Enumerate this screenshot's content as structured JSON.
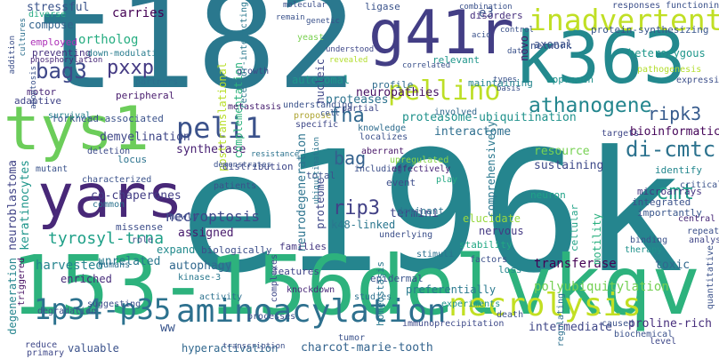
{
  "words": [
    {
      "text": "e196k",
      "color": "#25858e"
    },
    {
      "text": "t182",
      "color": "#2a788e"
    },
    {
      "text": "153-156delvkqv",
      "color": "#2db27d"
    },
    {
      "text": "k363",
      "color": "#23898e"
    },
    {
      "text": "g41r",
      "color": "#433e85"
    },
    {
      "text": "tys1",
      "color": "#6ccd5a"
    },
    {
      "text": "yars",
      "color": "#482878"
    },
    {
      "text": "inadvertent",
      "color": "#c0df25"
    },
    {
      "text": "pellino",
      "color": "#bddf26"
    },
    {
      "text": "aminoacylation",
      "color": "#2d708e"
    },
    {
      "text": "1p34-p35",
      "color": "#2c728e"
    },
    {
      "text": "necrolysis",
      "color": "#c2df23"
    },
    {
      "text": "peli1",
      "color": "#3b528b"
    },
    {
      "text": "di-cmtc",
      "color": "#2c728e"
    },
    {
      "text": "athanogene",
      "color": "#24868e"
    },
    {
      "text": "bag3",
      "color": "#3f4889"
    },
    {
      "text": "pxxp",
      "color": "#443a83"
    },
    {
      "text": "ripk3",
      "color": "#375b8d"
    },
    {
      "text": "fha",
      "color": "#31688e"
    },
    {
      "text": "bag",
      "color": "#34618d"
    },
    {
      "text": "cmt",
      "color": "#1f9e89"
    },
    {
      "text": "rip3",
      "color": "#424186"
    },
    {
      "text": "tyrosyl-trna",
      "color": "#1fa088"
    },
    {
      "text": "e3",
      "color": "#3b528b"
    },
    {
      "text": "ortholog",
      "color": "#26ad81"
    },
    {
      "text": "carries",
      "color": "#440154"
    },
    {
      "text": "stressful",
      "color": "#3a538b"
    },
    {
      "text": "neuropathies",
      "color": "#471164"
    },
    {
      "text": "proteases",
      "color": "#2c728e"
    },
    {
      "text": "proteasome-ubiquitination",
      "color": "#20928c"
    },
    {
      "text": "autosomal",
      "color": "#1f968b"
    },
    {
      "text": "polyubiquitylation",
      "color": "#75d054"
    },
    {
      "text": "necroptosis",
      "color": "#3e4989"
    },
    {
      "text": "transferase",
      "color": "#440154"
    },
    {
      "text": "autophagy",
      "color": "#31688e"
    },
    {
      "text": "harvested",
      "color": "#25848e"
    },
    {
      "text": "co-chaperones",
      "color": "#433e85"
    },
    {
      "text": "demyelination",
      "color": "#3f4788"
    },
    {
      "text": "synthetase",
      "color": "#482173"
    },
    {
      "text": "interactome",
      "color": "#2e6e8e"
    },
    {
      "text": "assigned",
      "color": "#481b6d"
    },
    {
      "text": "expands",
      "color": "#238a8d"
    },
    {
      "text": "unrelated",
      "color": "#2a788e"
    },
    {
      "text": "complementation",
      "color": "#2db27d"
    },
    {
      "text": "posttranslational",
      "color": "#b8de29"
    },
    {
      "text": "k48-linked",
      "color": "#2a768e"
    },
    {
      "text": "termini",
      "color": "#404588"
    },
    {
      "text": "resource",
      "color": "#77d153"
    },
    {
      "text": "sustaining",
      "color": "#3e4a89"
    },
    {
      "text": "bioinformatic",
      "color": "#450559"
    },
    {
      "text": "comprehensively",
      "color": "#2a778e"
    },
    {
      "text": "motility",
      "color": "#2ab07f"
    },
    {
      "text": "toxic",
      "color": "#31688e"
    },
    {
      "text": "proline-rich",
      "color": "#472e7c"
    },
    {
      "text": "intermediate",
      "color": "#3f4788"
    },
    {
      "text": "charcot-marie-tooth",
      "color": "#33638d"
    },
    {
      "text": "hyperactivation",
      "color": "#31688e"
    },
    {
      "text": "valuable",
      "color": "#3b528b"
    },
    {
      "text": "neuroblastoma",
      "color": "#414487"
    },
    {
      "text": "keratinocytes",
      "color": "#1f968b"
    },
    {
      "text": "neurodegeneration",
      "color": "#2c738e"
    },
    {
      "text": "proteome",
      "color": "#3f4889"
    },
    {
      "text": "nucleic",
      "color": "#3f4788"
    },
    {
      "text": "axonal",
      "color": "#3b528b"
    },
    {
      "text": "novo",
      "color": "#48186a"
    },
    {
      "text": "heterozygous",
      "color": "#1f978b"
    },
    {
      "text": "ww",
      "color": "#39558c"
    },
    {
      "text": "degeneration",
      "color": "#25858e"
    },
    {
      "text": "enriched",
      "color": "#472c7a"
    },
    {
      "text": "preferentially",
      "color": "#29798e"
    },
    {
      "text": "epidermal",
      "color": "#3a548c"
    },
    {
      "text": "stability",
      "color": "#22a884"
    },
    {
      "text": "nervous",
      "color": "#443983"
    },
    {
      "text": "elucidate",
      "color": "#98d83e"
    },
    {
      "text": "dominant",
      "color": "#2c718e"
    },
    {
      "text": "neuron",
      "color": "#1fa287"
    },
    {
      "text": "integrated",
      "color": "#3b528b"
    },
    {
      "text": "microarrays",
      "color": "#453581"
    },
    {
      "text": "identify",
      "color": "#24878e"
    },
    {
      "text": "importantly",
      "color": "#39568c"
    },
    {
      "text": "cellular",
      "color": "#20a386"
    },
    {
      "text": "biologically",
      "color": "#3c4f8a"
    },
    {
      "text": "families",
      "color": "#453781"
    },
    {
      "text": "features",
      "color": "#404588"
    },
    {
      "text": "homeostasis",
      "color": "#2a788e"
    },
    {
      "text": "newly",
      "color": "#3e4989"
    },
    {
      "text": "missense",
      "color": "#3d4e8a"
    },
    {
      "text": "peripheral",
      "color": "#481b6d"
    },
    {
      "text": "motor",
      "color": "#482576"
    },
    {
      "text": "adaptive",
      "color": "#414487"
    },
    {
      "text": "forkhead-associated",
      "color": "#3b528b"
    },
    {
      "text": "locus",
      "color": "#2c738e"
    },
    {
      "text": "distribution",
      "color": "#3f4889"
    },
    {
      "text": "total",
      "color": "#3b528b"
    },
    {
      "text": "event",
      "color": "#3d4e8a"
    },
    {
      "text": "profile",
      "color": "#2f6c8e"
    },
    {
      "text": "maintaining",
      "color": "#25858e"
    },
    {
      "text": "relevant",
      "color": "#1f968b"
    },
    {
      "text": "approach",
      "color": "#20928c"
    },
    {
      "text": "network",
      "color": "#3b528b"
    },
    {
      "text": "protein-synthesizing",
      "color": "#39568c"
    },
    {
      "text": "disorders",
      "color": "#472f7d"
    },
    {
      "text": "ligase",
      "color": "#3a538b"
    },
    {
      "text": "compose",
      "color": "#33638d"
    },
    {
      "text": "employed",
      "color": "#ad31b8"
    },
    {
      "text": "preventing",
      "color": "#46317e"
    },
    {
      "text": "down-modulation",
      "color": "#287c8e"
    },
    {
      "text": "partners",
      "color": "#2d708e"
    },
    {
      "text": "diverse",
      "color": "#25ab82"
    },
    {
      "text": "yeast",
      "color": "#7ad151"
    },
    {
      "text": "metastasis",
      "color": "#482071"
    },
    {
      "text": "growth",
      "color": "#3e4a89"
    },
    {
      "text": "receptor-interacting",
      "color": "#2a788e"
    },
    {
      "text": "knowledge",
      "color": "#2f6c8e"
    },
    {
      "text": "localizes",
      "color": "#3c508b"
    },
    {
      "text": "aberrant",
      "color": "#481769"
    },
    {
      "text": "including",
      "color": "#3c4f8a"
    },
    {
      "text": "effectively",
      "color": "#482677"
    },
    {
      "text": "upregulated",
      "color": "#88d548"
    },
    {
      "text": "play",
      "color": "#23a983"
    },
    {
      "text": "propose",
      "color": "#ada431"
    },
    {
      "text": "partial",
      "color": "#3f4889"
    },
    {
      "text": "specific",
      "color": "#3f4889"
    },
    {
      "text": "involved",
      "color": "#31688e"
    },
    {
      "text": "understanding",
      "color": "#3b528b"
    },
    {
      "text": "mutant",
      "color": "#3a538b"
    },
    {
      "text": "survival",
      "color": "#26818e"
    },
    {
      "text": "deletion",
      "color": "#3e4c8a"
    },
    {
      "text": "characterized",
      "color": "#3b528b"
    },
    {
      "text": "common",
      "color": "#2c738e"
    },
    {
      "text": "triggered",
      "color": "#471063"
    },
    {
      "text": "degradation",
      "color": "#3b528b"
    },
    {
      "text": "suggesting",
      "color": "#3c4f8a"
    },
    {
      "text": "activity",
      "color": "#2c718e"
    },
    {
      "text": "kinase-3",
      "color": "#2a788e"
    },
    {
      "text": "processes",
      "color": "#3c4f8a"
    },
    {
      "text": "complexes",
      "color": "#3f4889"
    },
    {
      "text": "knockdown",
      "color": "#482878"
    },
    {
      "text": "studies",
      "color": "#2d708e"
    },
    {
      "text": "experiments",
      "color": "#20928c"
    },
    {
      "text": "loss",
      "color": "#24878e"
    },
    {
      "text": "death",
      "color": "#3b528b"
    },
    {
      "text": "immunoprecipitation",
      "color": "#3e4a89"
    },
    {
      "text": "caused",
      "color": "#3b528b"
    },
    {
      "text": "biochemical",
      "color": "#3b528b"
    },
    {
      "text": "level",
      "color": "#3f4889"
    },
    {
      "text": "repeat",
      "color": "#3c508b"
    },
    {
      "text": "analysis",
      "color": "#404688"
    },
    {
      "text": "therapy",
      "color": "#20928c"
    },
    {
      "text": "central",
      "color": "#482878"
    },
    {
      "text": "binding",
      "color": "#3b528b"
    },
    {
      "text": "targets",
      "color": "#3f4788"
    },
    {
      "text": "responses",
      "color": "#3c4f8a"
    },
    {
      "text": "functioning",
      "color": "#3b528b"
    },
    {
      "text": "expressing",
      "color": "#3c4f8a"
    },
    {
      "text": "pathogenesis",
      "color": "#b2dd2d"
    },
    {
      "text": "critical",
      "color": "#3b528b"
    },
    {
      "text": "quantitative",
      "color": "#3b528b"
    },
    {
      "text": "regulating",
      "color": "#2d708e"
    },
    {
      "text": "humans",
      "color": "#2d708e"
    },
    {
      "text": "role",
      "color": "#3f4889"
    },
    {
      "text": "reduce",
      "color": "#3f4889"
    },
    {
      "text": "primary",
      "color": "#3f4889"
    },
    {
      "text": "stimuli",
      "color": "#2c718e"
    },
    {
      "text": "underlying",
      "color": "#3c4f8a"
    },
    {
      "text": "patients",
      "color": "#3b528b"
    },
    {
      "text": "demonstrates",
      "color": "#3b528b"
    },
    {
      "text": "tumor",
      "color": "#3b528b"
    },
    {
      "text": "transcription",
      "color": "#3c4f8a"
    },
    {
      "text": "factors",
      "color": "#3c508b"
    },
    {
      "text": "resistance",
      "color": "#2c738e"
    },
    {
      "text": "ubiquitination",
      "color": "#2b758e"
    },
    {
      "text": "revealed",
      "color": "#b2dd2d"
    },
    {
      "text": "understood",
      "color": "#3f4889"
    },
    {
      "text": "genetic",
      "color": "#3b528b"
    },
    {
      "text": "remain",
      "color": "#3b528b"
    },
    {
      "text": "molecular",
      "color": "#3c4f8a"
    },
    {
      "text": "combination",
      "color": "#3b528b"
    },
    {
      "text": "acid",
      "color": "#3b528b"
    },
    {
      "text": "control",
      "color": "#3b528b"
    },
    {
      "text": "data",
      "color": "#3b528b"
    },
    {
      "text": "correlated",
      "color": "#3b528b"
    },
    {
      "text": "cultures",
      "color": "#2d708e"
    },
    {
      "text": "addition",
      "color": "#3c4f8a"
    },
    {
      "text": "phosphorylation",
      "color": "#482878"
    },
    {
      "text": "apoptosis",
      "color": "#3b528b"
    },
    {
      "text": "cell",
      "color": "#3b528b"
    },
    {
      "text": "types",
      "color": "#3b528b"
    },
    {
      "text": "basis",
      "color": "#3b528b"
    }
  ]
}
